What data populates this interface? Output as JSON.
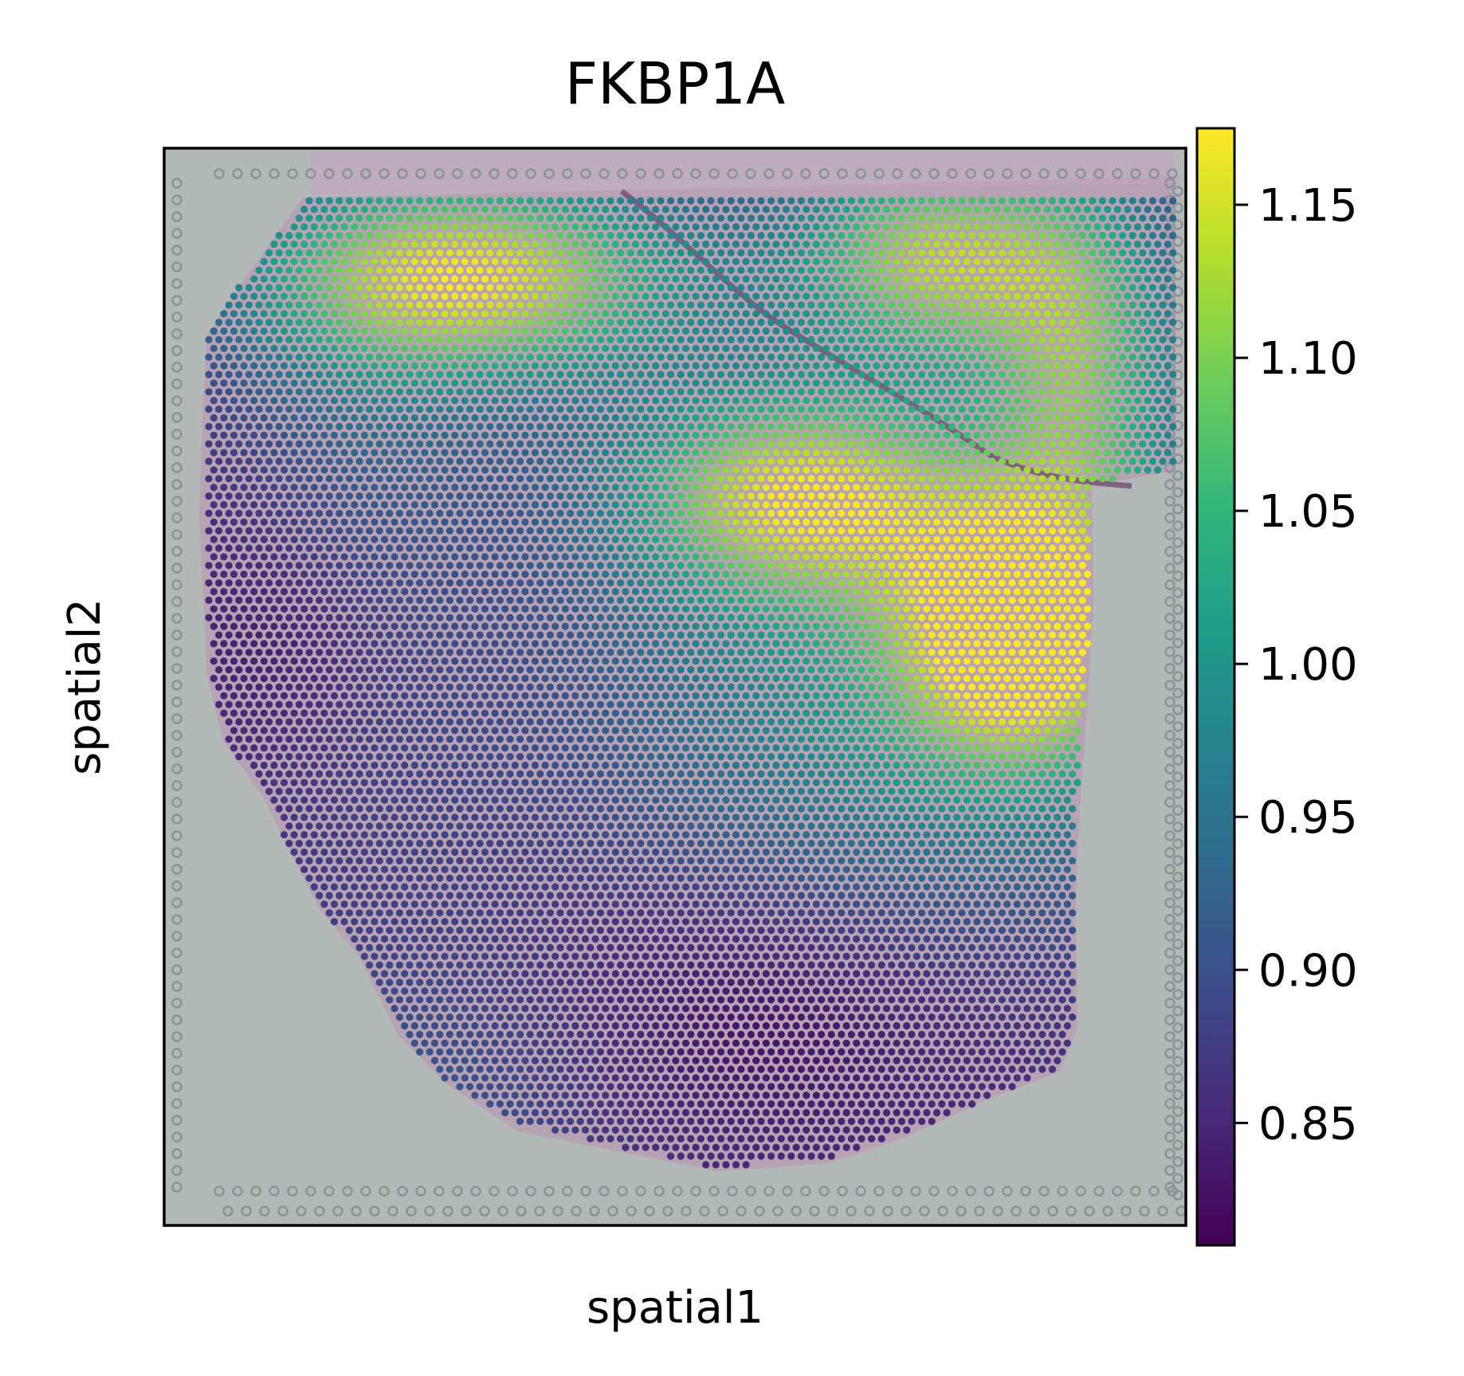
{
  "chart_data": {
    "type": "scatter",
    "subtype": "spatial-expression-map",
    "title": "FKBP1A",
    "xlabel": "spatial1",
    "ylabel": "spatial2",
    "background": "H&E tissue image with Visium spot grid",
    "point_layout": "hexagonal spot grid covering the tissue section",
    "colormap": "viridis",
    "colormap_stops": [
      "#440154",
      "#482878",
      "#3e4a89",
      "#31688e",
      "#26828e",
      "#1f9e89",
      "#35b779",
      "#6ece58",
      "#b5de2b",
      "#fde725"
    ],
    "colorbar": {
      "label": "",
      "range": [
        0.81,
        1.175
      ],
      "ticks": [
        0.85,
        0.9,
        0.95,
        1.0,
        1.05,
        1.1,
        1.15
      ],
      "tick_labels": [
        "0.85",
        "0.90",
        "0.95",
        "1.00",
        "1.05",
        "1.10",
        "1.15"
      ]
    },
    "expression_summary": {
      "high_regions": [
        "upper-left band",
        "upper-right band",
        "right-center"
      ],
      "low_regions": [
        "left-center",
        "lower-center"
      ],
      "min_value": 0.81,
      "max_value": 1.175
    },
    "xticks_visible": false,
    "yticks_visible": false,
    "grid": false,
    "legend": "colorbar-right"
  }
}
